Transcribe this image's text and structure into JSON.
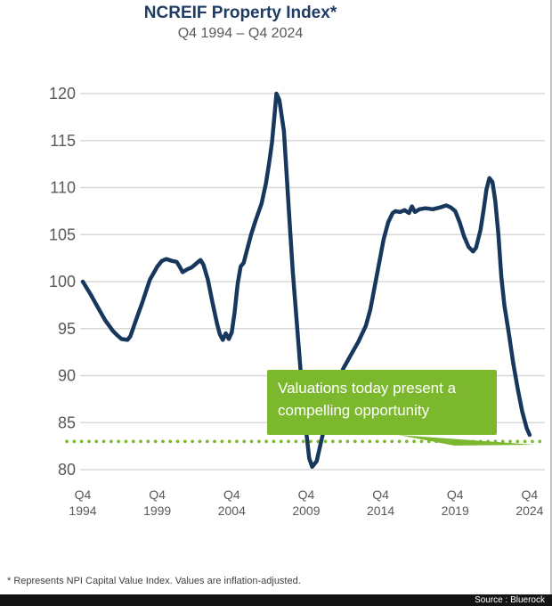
{
  "page": {
    "title": "NCREIF Property Index*",
    "subtitle": "Q4 1994 – Q4 2024",
    "footnote": "* Represents NPI Capital Value Index. Values are inflation-adjusted.",
    "source": "Source : Bluerock"
  },
  "colors": {
    "line": "#17375c",
    "title": "#1e3c64",
    "axis_label": "#595959",
    "gridline": "#d8d8d8",
    "green": "#7cb82e",
    "callout_text": "#ffffff",
    "footnote": "#3f3f3f",
    "source_bar_bg": "#141414",
    "source_text": "#ffffff"
  },
  "chart_data": {
    "type": "line",
    "title": "NCREIF Property Index*",
    "subtitle": "Q4 1994 – Q4 2024",
    "xlabel": "",
    "ylabel": "",
    "ylim": [
      80,
      120
    ],
    "yticks": [
      120,
      115,
      110,
      105,
      100,
      95,
      90,
      85,
      80
    ],
    "xticks": [
      {
        "quarter": "Q4",
        "year": "1994"
      },
      {
        "quarter": "Q4",
        "year": "1999"
      },
      {
        "quarter": "Q4",
        "year": "2004"
      },
      {
        "quarter": "Q4",
        "year": "2009"
      },
      {
        "quarter": "Q4",
        "year": "2014"
      },
      {
        "quarter": "Q4",
        "year": "2019"
      },
      {
        "quarter": "Q4",
        "year": "2024"
      }
    ],
    "x_unit": "years since Q4 1994",
    "grid": true,
    "legend": "none",
    "reference_line": {
      "value": 83,
      "style": "dotted-green"
    },
    "annotation": {
      "line1": "Valuations today present a",
      "line2": "compelling opportunity",
      "points_to": "Q4 2024 endpoint"
    },
    "series": [
      {
        "name": "NCREIF Property Index (NPI Capital Value, inflation-adjusted)",
        "points": [
          [
            0,
            100
          ],
          [
            0.5,
            98.7
          ],
          [
            1,
            97.3
          ],
          [
            1.5,
            95.9
          ],
          [
            2,
            94.8
          ],
          [
            2.3,
            94.3
          ],
          [
            2.6,
            93.9
          ],
          [
            3,
            93.8
          ],
          [
            3.2,
            94.2
          ],
          [
            3.5,
            95.6
          ],
          [
            4,
            97.8
          ],
          [
            4.5,
            100.2
          ],
          [
            5,
            101.6
          ],
          [
            5.3,
            102.2
          ],
          [
            5.6,
            102.4
          ],
          [
            6,
            102.2
          ],
          [
            6.3,
            102.1
          ],
          [
            6.5,
            101.6
          ],
          [
            6.7,
            101.0
          ],
          [
            7,
            101.3
          ],
          [
            7.3,
            101.5
          ],
          [
            7.6,
            101.9
          ],
          [
            7.9,
            102.3
          ],
          [
            8.1,
            101.8
          ],
          [
            8.4,
            100.2
          ],
          [
            8.7,
            97.8
          ],
          [
            9,
            95.6
          ],
          [
            9.2,
            94.4
          ],
          [
            9.4,
            93.8
          ],
          [
            9.6,
            94.5
          ],
          [
            9.8,
            93.9
          ],
          [
            10,
            94.6
          ],
          [
            10.2,
            96.8
          ],
          [
            10.4,
            99.8
          ],
          [
            10.6,
            101.6
          ],
          [
            10.8,
            102.0
          ],
          [
            11,
            103.2
          ],
          [
            11.3,
            105.0
          ],
          [
            11.6,
            106.5
          ],
          [
            12,
            108.3
          ],
          [
            12.3,
            110.5
          ],
          [
            12.5,
            112.5
          ],
          [
            12.7,
            114.8
          ],
          [
            12.9,
            118.2
          ],
          [
            13.0,
            120.0
          ],
          [
            13.2,
            119.3
          ],
          [
            13.5,
            116.0
          ],
          [
            13.7,
            111.0
          ],
          [
            13.9,
            106.0
          ],
          [
            14.1,
            101.0
          ],
          [
            14.4,
            95.0
          ],
          [
            14.7,
            89.0
          ],
          [
            15.0,
            84.0
          ],
          [
            15.2,
            81.2
          ],
          [
            15.4,
            80.3
          ],
          [
            15.7,
            80.9
          ],
          [
            16,
            83.0
          ],
          [
            16.3,
            85.0
          ],
          [
            16.6,
            86.8
          ],
          [
            17,
            88.8
          ],
          [
            17.5,
            90.8
          ],
          [
            18,
            92.2
          ],
          [
            18.5,
            93.6
          ],
          [
            19,
            95.3
          ],
          [
            19.3,
            97.0
          ],
          [
            19.6,
            99.5
          ],
          [
            19.9,
            102.0
          ],
          [
            20.2,
            104.5
          ],
          [
            20.5,
            106.3
          ],
          [
            20.8,
            107.3
          ],
          [
            21,
            107.5
          ],
          [
            21.3,
            107.4
          ],
          [
            21.6,
            107.6
          ],
          [
            21.9,
            107.3
          ],
          [
            22.1,
            108.0
          ],
          [
            22.3,
            107.4
          ],
          [
            22.6,
            107.7
          ],
          [
            23,
            107.8
          ],
          [
            23.5,
            107.7
          ],
          [
            24,
            107.9
          ],
          [
            24.4,
            108.1
          ],
          [
            24.7,
            107.9
          ],
          [
            25,
            107.5
          ],
          [
            25.3,
            106.3
          ],
          [
            25.6,
            104.8
          ],
          [
            25.9,
            103.7
          ],
          [
            26.2,
            103.2
          ],
          [
            26.4,
            103.6
          ],
          [
            26.7,
            105.5
          ],
          [
            26.9,
            107.5
          ],
          [
            27.1,
            109.8
          ],
          [
            27.3,
            111.0
          ],
          [
            27.5,
            110.6
          ],
          [
            27.7,
            108.5
          ],
          [
            27.9,
            105.0
          ],
          [
            28.1,
            100.5
          ],
          [
            28.3,
            97.5
          ],
          [
            28.6,
            94.5
          ],
          [
            28.9,
            91.3
          ],
          [
            29.2,
            88.6
          ],
          [
            29.5,
            86.2
          ],
          [
            29.8,
            84.4
          ],
          [
            30,
            83.7
          ]
        ]
      }
    ]
  }
}
